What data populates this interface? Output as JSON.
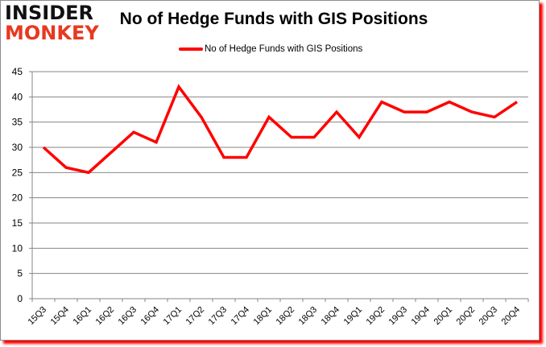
{
  "logo": {
    "line1": "INSIDER",
    "line2": "MONKEY"
  },
  "colors": {
    "series": "#ff0000",
    "grid": "#868686",
    "logo_red": "#e8381f"
  },
  "chart_data": {
    "type": "line",
    "title": "No of Hedge Funds with GIS Positions",
    "xlabel": "",
    "ylabel": "",
    "ylim": [
      0,
      45
    ],
    "yticks": [
      0,
      5,
      10,
      15,
      20,
      25,
      30,
      35,
      40,
      45
    ],
    "grid": true,
    "legend_position": "top",
    "categories": [
      "15Q3",
      "15Q4",
      "16Q1",
      "16Q2",
      "16Q3",
      "16Q4",
      "17Q1",
      "17Q2",
      "17Q3",
      "17Q4",
      "18Q1",
      "18Q2",
      "18Q3",
      "18Q4",
      "19Q1",
      "19Q2",
      "19Q3",
      "19Q4",
      "20Q1",
      "20Q2",
      "20Q3",
      "20Q4"
    ],
    "series": [
      {
        "name": "No of Hedge Funds with GIS Positions",
        "values": [
          30,
          26,
          25,
          29,
          33,
          31,
          42,
          36,
          28,
          28,
          36,
          32,
          32,
          37,
          32,
          39,
          37,
          37,
          39,
          37,
          36,
          39
        ]
      }
    ]
  }
}
